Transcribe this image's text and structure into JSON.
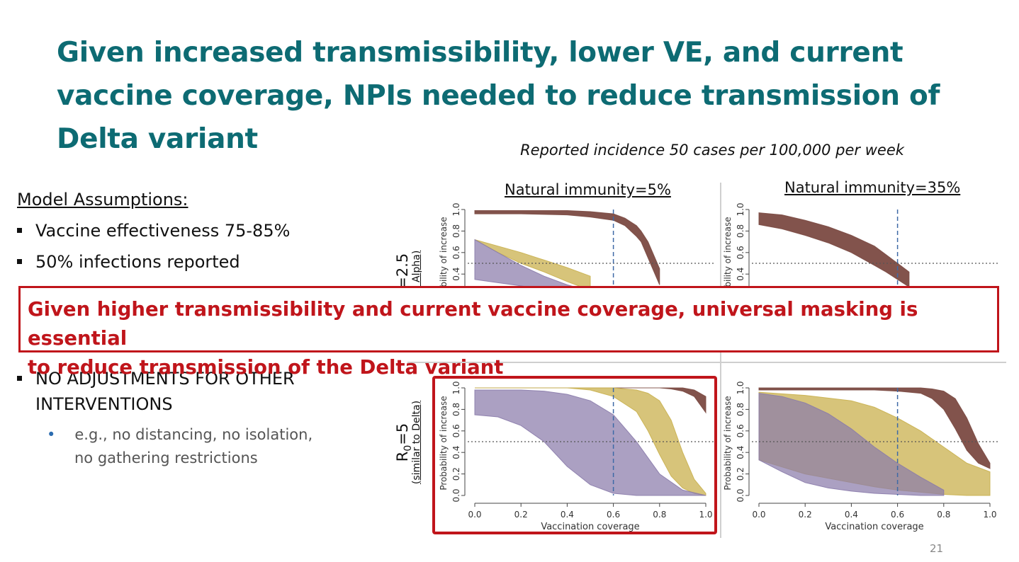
{
  "slide": {
    "title": "Given increased transmissibility, lower VE, and current vaccine coverage, NPIs needed to reduce transmission of Delta variant",
    "subtitle": "Reported incidence 50 cases per 100,000 per week",
    "assumptions_heading": "Model Assumptions:",
    "bullets": [
      "Vaccine effectiveness 75-85%",
      "50% infections reported"
    ],
    "bullet_no_adjust_line1": "NO ADJUSTMENTS FOR OTHER",
    "bullet_no_adjust_line2": "INTERVENTIONS",
    "sub_bullet_line1": "e.g., no distancing, no isolation,",
    "sub_bullet_line2": "no gathering restrictions",
    "callout_line1": "Given higher transmissibility and current vaccine coverage, universal masking is essential",
    "callout_line2": "to reduce transmission of the Delta variant",
    "page_number": "21",
    "colors": {
      "title": "#0d6b73",
      "callout": "#c0151b",
      "brown": "#7b4a42",
      "gold": "#c9b04e",
      "purple": "#8a7bab",
      "vline": "#3e6aa6"
    }
  },
  "panels": {
    "col_titles": [
      "Natural immunity=5%",
      "Natural immunity=35%"
    ],
    "row_labels": [
      {
        "main": "R",
        "sub": "0",
        "rest": "=2.5",
        "note": "ar to Alpha)"
      },
      {
        "main": "R",
        "sub": "0",
        "rest": "=5",
        "note": "(similar to Delta)"
      }
    ]
  },
  "chart_data": [
    {
      "type": "area",
      "panel": "R0=2.5, Natural immunity=5%",
      "ylabel": "bility of increase",
      "yticks": [
        "0.4",
        "0.6",
        "0.8",
        "1.0"
      ],
      "ylim": [
        0,
        1
      ],
      "xlim": [
        0,
        1
      ],
      "reference_lines": {
        "vertical_x": 0.6,
        "horizontal_y": 0.5
      },
      "bands": [
        {
          "color": "brown",
          "x": [
            0,
            0.2,
            0.4,
            0.5,
            0.6,
            0.65,
            0.7,
            0.72,
            0.75,
            0.8
          ],
          "lower": [
            0.96,
            0.96,
            0.95,
            0.93,
            0.9,
            0.85,
            0.75,
            0.7,
            0.55,
            0.3
          ],
          "upper": [
            0.99,
            0.99,
            0.99,
            0.98,
            0.96,
            0.92,
            0.85,
            0.8,
            0.7,
            0.45
          ]
        },
        {
          "color": "gold",
          "x": [
            0,
            0.1,
            0.2,
            0.3,
            0.4,
            0.5
          ],
          "lower": [
            0.72,
            0.6,
            0.5,
            0.42,
            0.33,
            0.25
          ],
          "upper": [
            0.72,
            0.66,
            0.6,
            0.53,
            0.46,
            0.38
          ]
        },
        {
          "color": "purple",
          "x": [
            0,
            0.1,
            0.2,
            0.3,
            0.4,
            0.5
          ],
          "lower": [
            0.35,
            0.32,
            0.29,
            0.26,
            0.23,
            0.2
          ],
          "upper": [
            0.72,
            0.6,
            0.48,
            0.38,
            0.3,
            0.24
          ]
        }
      ]
    },
    {
      "type": "area",
      "panel": "R0=2.5, Natural immunity=35%",
      "ylabel": "bility of increase",
      "yticks": [
        "0.4",
        "0.6",
        "0.8",
        "1.0"
      ],
      "ylim": [
        0,
        1
      ],
      "xlim": [
        0,
        1
      ],
      "reference_lines": {
        "vertical_x": 0.6,
        "horizontal_y": 0.5
      },
      "bands": [
        {
          "color": "brown",
          "x": [
            0,
            0.1,
            0.2,
            0.3,
            0.4,
            0.5,
            0.55,
            0.6,
            0.65
          ],
          "lower": [
            0.86,
            0.82,
            0.76,
            0.69,
            0.6,
            0.48,
            0.42,
            0.35,
            0.28
          ],
          "upper": [
            0.97,
            0.95,
            0.9,
            0.84,
            0.76,
            0.66,
            0.58,
            0.5,
            0.42
          ]
        }
      ]
    },
    {
      "type": "area",
      "panel": "R0=5, Natural immunity=5%",
      "xlabel": "Vaccination coverage",
      "ylabel": "Probability of increase",
      "xticks": [
        "0.0",
        "0.2",
        "0.4",
        "0.6",
        "0.8",
        "1.0"
      ],
      "yticks": [
        "0.0",
        "0.2",
        "0.4",
        "0.6",
        "0.8",
        "1.0"
      ],
      "ylim": [
        0,
        1
      ],
      "xlim": [
        0,
        1
      ],
      "reference_lines": {
        "vertical_x": 0.6,
        "horizontal_y": 0.5
      },
      "bands": [
        {
          "color": "brown",
          "x": [
            0,
            0.2,
            0.4,
            0.6,
            0.8,
            0.85,
            0.9,
            0.95,
            1.0
          ],
          "lower": [
            1.0,
            1.0,
            1.0,
            1.0,
            1.0,
            0.99,
            0.97,
            0.92,
            0.77
          ],
          "upper": [
            1.0,
            1.0,
            1.0,
            1.0,
            1.0,
            1.0,
            1.0,
            0.98,
            0.92
          ]
        },
        {
          "color": "gold",
          "x": [
            0,
            0.2,
            0.4,
            0.5,
            0.6,
            0.7,
            0.75,
            0.8,
            0.85,
            0.9,
            0.95,
            1.0
          ],
          "lower": [
            1.0,
            1.0,
            1.0,
            0.98,
            0.92,
            0.78,
            0.6,
            0.38,
            0.18,
            0.07,
            0.02,
            0.0
          ],
          "upper": [
            1.0,
            1.0,
            1.0,
            1.0,
            1.0,
            0.98,
            0.95,
            0.88,
            0.7,
            0.4,
            0.15,
            0.02
          ]
        },
        {
          "color": "purple",
          "x": [
            0,
            0.1,
            0.2,
            0.3,
            0.4,
            0.5,
            0.6,
            0.7,
            0.8,
            0.9,
            1.0
          ],
          "lower": [
            0.75,
            0.73,
            0.65,
            0.5,
            0.27,
            0.1,
            0.02,
            0.0,
            0.0,
            0.0,
            0.0
          ],
          "upper": [
            0.98,
            0.98,
            0.98,
            0.97,
            0.94,
            0.88,
            0.75,
            0.5,
            0.2,
            0.05,
            0.0
          ]
        }
      ]
    },
    {
      "type": "area",
      "panel": "R0=5, Natural immunity=35%",
      "xlabel": "Vaccination coverage",
      "ylabel": "Probability of increase",
      "xticks": [
        "0.0",
        "0.2",
        "0.4",
        "0.6",
        "0.8",
        "1.0"
      ],
      "yticks": [
        "0.0",
        "0.2",
        "0.4",
        "0.6",
        "0.8",
        "1.0"
      ],
      "ylim": [
        0,
        1
      ],
      "xlim": [
        0,
        1
      ],
      "reference_lines": {
        "vertical_x": 0.6,
        "horizontal_y": 0.5
      },
      "bands": [
        {
          "color": "brown",
          "x": [
            0,
            0.3,
            0.5,
            0.6,
            0.7,
            0.75,
            0.8,
            0.85,
            0.9,
            0.95,
            1.0
          ],
          "lower": [
            0.98,
            0.98,
            0.98,
            0.97,
            0.95,
            0.9,
            0.8,
            0.62,
            0.42,
            0.3,
            0.25
          ],
          "upper": [
            1.0,
            1.0,
            1.0,
            1.0,
            1.0,
            0.99,
            0.97,
            0.9,
            0.72,
            0.48,
            0.3
          ]
        },
        {
          "color": "gold",
          "x": [
            0,
            0.2,
            0.4,
            0.5,
            0.6,
            0.7,
            0.8,
            0.9,
            1.0
          ],
          "lower": [
            0.33,
            0.2,
            0.12,
            0.08,
            0.05,
            0.03,
            0.01,
            0.0,
            0.0
          ],
          "upper": [
            0.96,
            0.93,
            0.88,
            0.82,
            0.72,
            0.6,
            0.45,
            0.3,
            0.22
          ]
        },
        {
          "color": "purple",
          "x": [
            0,
            0.1,
            0.2,
            0.3,
            0.4,
            0.5,
            0.6,
            0.7,
            0.8
          ],
          "lower": [
            0.33,
            0.22,
            0.12,
            0.07,
            0.04,
            0.02,
            0.01,
            0.0,
            0.0
          ],
          "upper": [
            0.95,
            0.92,
            0.86,
            0.76,
            0.62,
            0.45,
            0.3,
            0.17,
            0.05
          ]
        }
      ]
    }
  ]
}
